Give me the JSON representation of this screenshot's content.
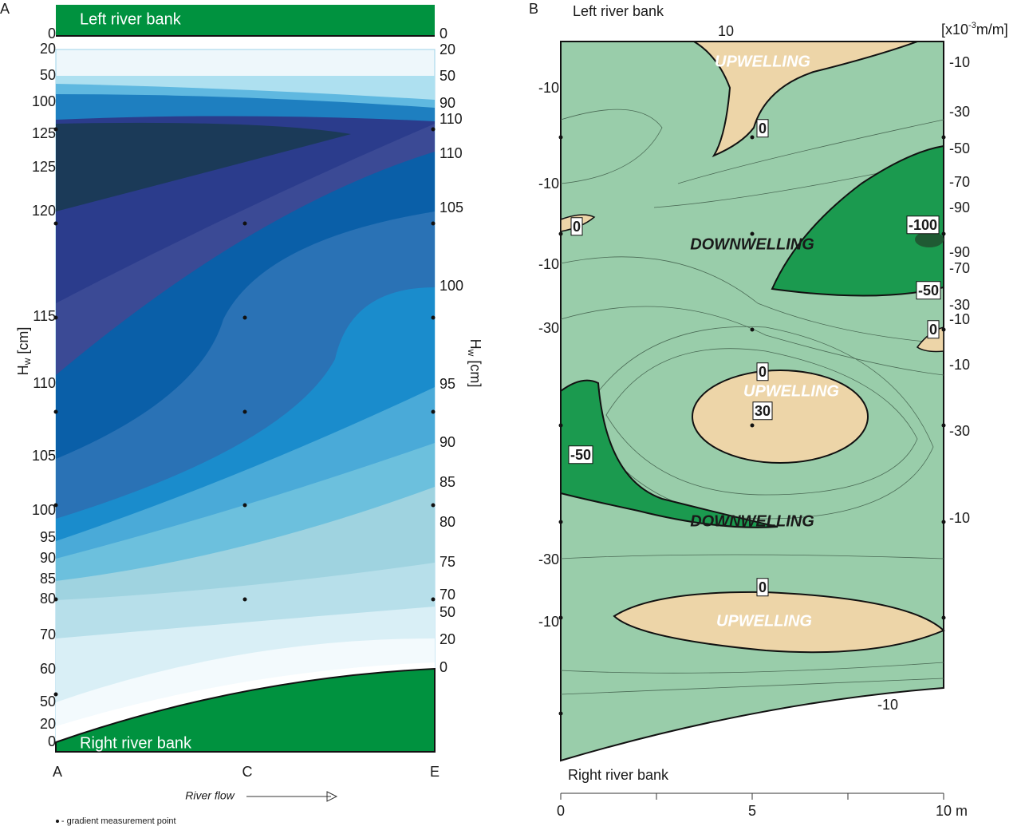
{
  "panel_a": {
    "letter": "A",
    "top_bank": "Left river bank",
    "bottom_bank": "Right river bank",
    "left_labels": [
      0,
      20,
      50,
      100,
      125,
      125,
      120,
      115,
      110,
      105,
      100,
      95,
      90,
      85,
      80,
      70,
      60,
      50,
      20,
      0
    ],
    "right_labels": [
      0,
      20,
      50,
      90,
      110,
      110,
      105,
      100,
      95,
      90,
      85,
      80,
      75,
      70,
      50,
      20,
      0
    ],
    "y_title": {
      "main": "H",
      "sub": "w",
      "unit": "[cm]"
    },
    "x_labels": [
      "A",
      "C",
      "E"
    ],
    "flow": "River flow",
    "note": "• - gradient measurement point"
  },
  "panel_b": {
    "letter": "B",
    "top_bank": "Left river bank",
    "bottom_bank": "Right river bank",
    "unit": {
      "pre": "[x10",
      "sup": "-3",
      "post": "m/m]"
    },
    "left_labels": [
      -10,
      -10,
      -10,
      -30,
      -30,
      -10
    ],
    "right_labels": [
      -10,
      -30,
      -50,
      -70,
      -90,
      -90,
      -70,
      -30,
      -10,
      -10,
      -30,
      -10
    ],
    "boxed_labels": [
      0,
      -100,
      0,
      -50,
      0,
      0,
      30,
      -50,
      0
    ],
    "regions": [
      "UPWELLING",
      "DOWNWELLING",
      "UPWELLING",
      "DOWNWELLING",
      "UPWELLING"
    ],
    "top_label": 10,
    "bottom_label": -10,
    "x_labels": [
      "0",
      "5",
      "10 m"
    ]
  }
}
